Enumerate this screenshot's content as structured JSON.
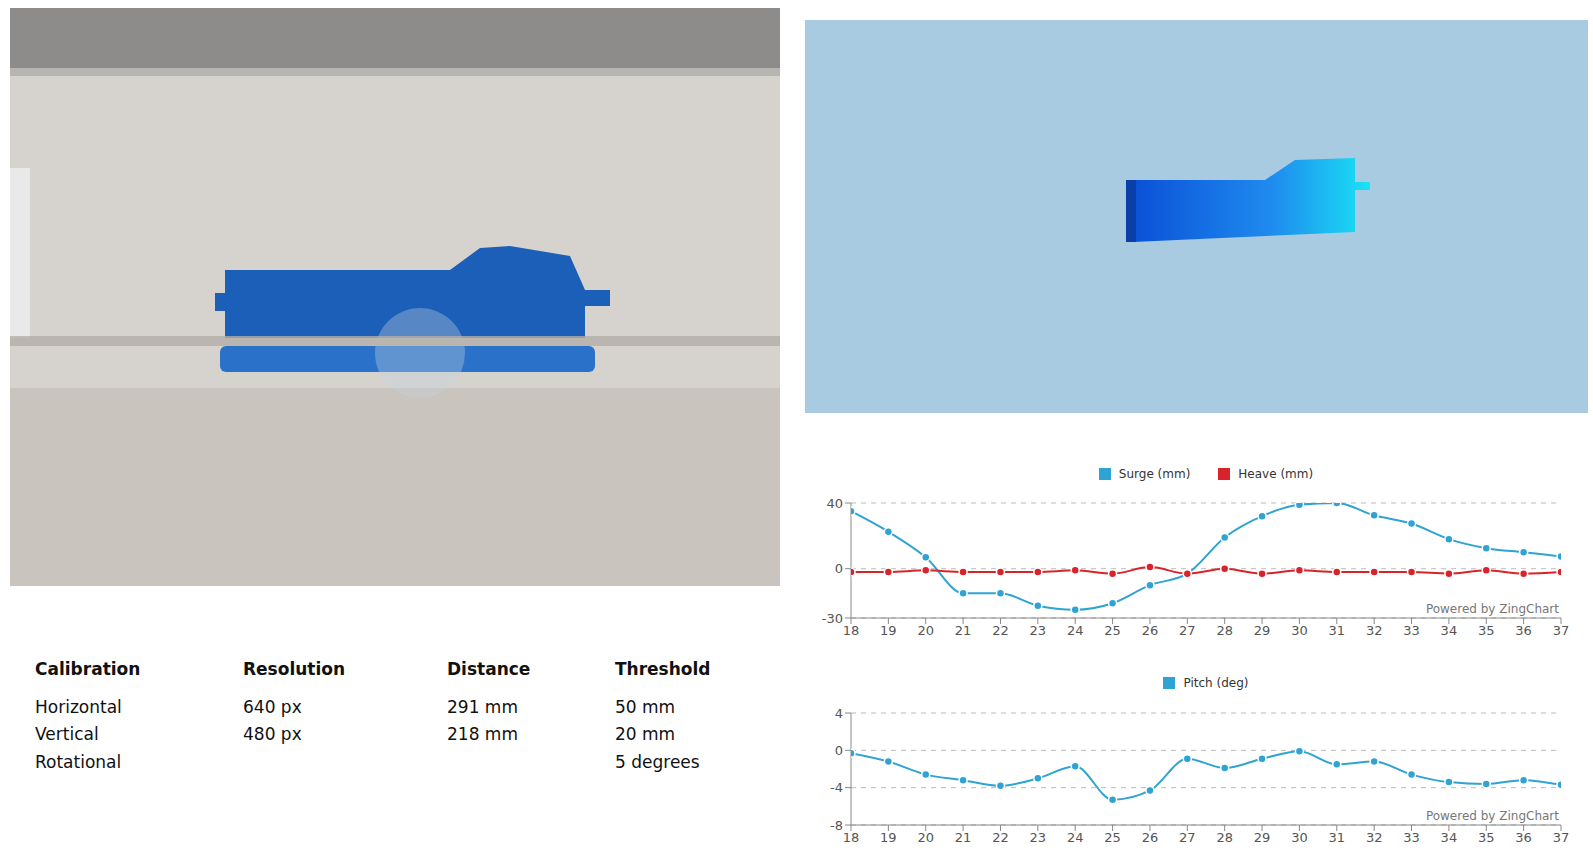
{
  "chart_data": [
    {
      "type": "line",
      "x": [
        18,
        19,
        20,
        21,
        22,
        23,
        24,
        25,
        26,
        27,
        28,
        29,
        30,
        31,
        32,
        33,
        34,
        35,
        36,
        37
      ],
      "xlim": [
        18,
        37
      ],
      "xticks": [
        18,
        19,
        20,
        21,
        22,
        23,
        24,
        25,
        26,
        27,
        28,
        29,
        30,
        31,
        32,
        33,
        34,
        35,
        36,
        37
      ],
      "ylim": [
        -30,
        40
      ],
      "yticks": [
        -30,
        0,
        40
      ],
      "grid": true,
      "legend": "top",
      "marker": "circle",
      "line_style": "smooth",
      "annotations": [
        "Powered by ZingChart"
      ],
      "series": [
        {
          "name": "Surge (mm)",
          "color": "#2ea3d4",
          "values": [
            35,
            22.5,
            7,
            -15,
            -15,
            -22.5,
            -25,
            -21,
            -10,
            -3,
            19,
            32,
            39,
            40,
            32.5,
            27.5,
            18,
            12.5,
            10,
            7.5
          ]
        },
        {
          "name": "Heave (mm)",
          "color": "#d9232a",
          "values": [
            -2,
            -2,
            -1,
            -2,
            -2,
            -2,
            -1,
            -3,
            1,
            -3,
            0,
            -3,
            -1,
            -2,
            -2,
            -2,
            -3,
            -1,
            -3,
            -2
          ]
        }
      ]
    },
    {
      "type": "line",
      "x": [
        18,
        19,
        20,
        21,
        22,
        23,
        24,
        25,
        26,
        27,
        28,
        29,
        30,
        31,
        32,
        33,
        34,
        35,
        36,
        37
      ],
      "xlim": [
        18,
        37
      ],
      "xticks": [
        18,
        19,
        20,
        21,
        22,
        23,
        24,
        25,
        26,
        27,
        28,
        29,
        30,
        31,
        32,
        33,
        34,
        35,
        36,
        37
      ],
      "ylim": [
        -8,
        4
      ],
      "yticks": [
        -8,
        -4,
        0,
        4
      ],
      "grid": true,
      "legend": "top",
      "marker": "circle",
      "line_style": "smooth",
      "annotations": [
        "Powered by ZingChart"
      ],
      "series": [
        {
          "name": "Pitch (deg)",
          "color": "#2ea3d4",
          "values": [
            -0.3,
            -1.2,
            -2.6,
            -3.2,
            -3.8,
            -3.0,
            -1.7,
            -5.3,
            -4.3,
            -0.9,
            -1.9,
            -0.9,
            -0.1,
            -1.5,
            -1.2,
            -2.6,
            -3.4,
            -3.6,
            -3.2,
            -3.7
          ]
        }
      ]
    }
  ],
  "table": {
    "header": [
      "Calibration",
      "Resolution",
      "Distance",
      "Threshold"
    ],
    "rows": [
      [
        "Horizontal",
        "640 px",
        "291 mm",
        "50 mm"
      ],
      [
        "Vertical",
        "480 px",
        "218 mm",
        "20 mm"
      ],
      [
        "Rotational",
        null,
        null,
        "5 degrees"
      ]
    ]
  }
}
